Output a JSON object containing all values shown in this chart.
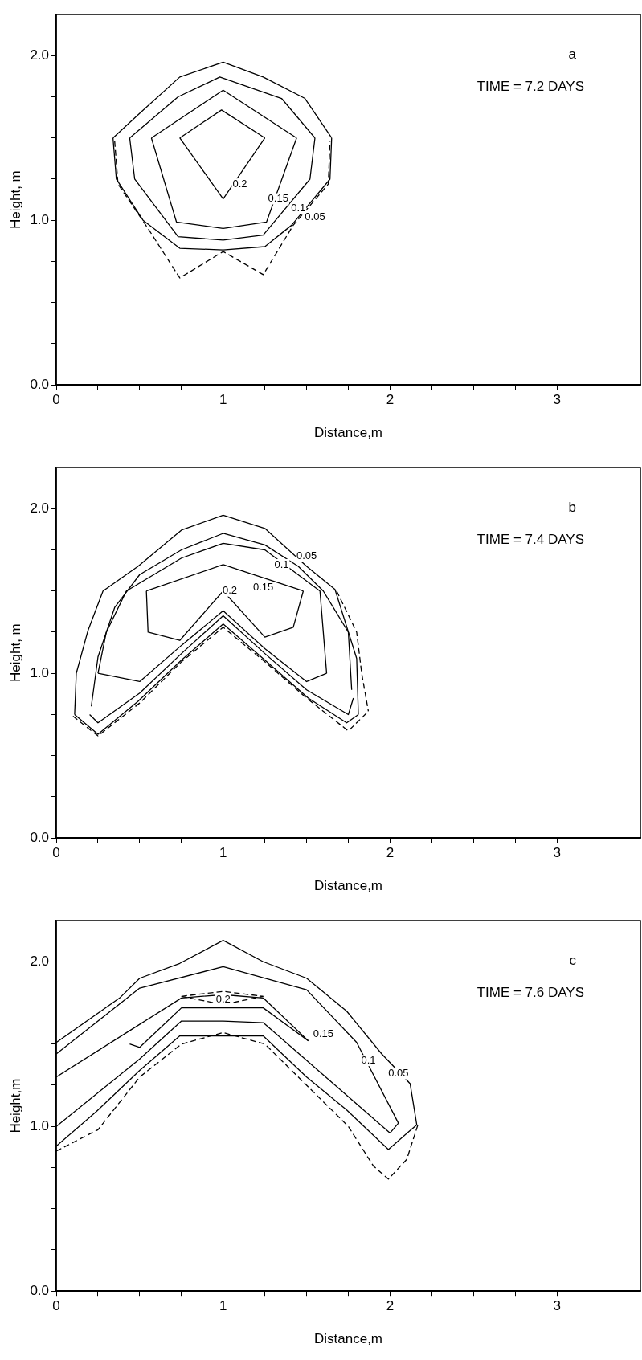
{
  "chart_data": [
    {
      "type": "line",
      "xlabel": "Distance,m",
      "ylabel": "Height, m",
      "xlim": [
        0,
        3.5
      ],
      "ylim": [
        0,
        2.25
      ],
      "xticks": [
        0,
        {
          "value": 0.25,
          "label": null
        },
        {
          "value": 0.5,
          "label": null
        },
        {
          "value": 0.75,
          "label": null
        },
        1,
        {
          "value": 1.25,
          "label": null
        },
        {
          "value": 1.5,
          "label": null
        },
        {
          "value": 1.75,
          "label": null
        },
        2,
        {
          "value": 2.25,
          "label": null
        },
        {
          "value": 2.5,
          "label": null
        },
        {
          "value": 2.75,
          "label": null
        },
        3,
        {
          "value": 3.25,
          "label": null
        }
      ],
      "yticks": [
        {
          "value": 0,
          "label": "0.0"
        },
        {
          "value": 0.25,
          "label": null
        },
        {
          "value": 0.5,
          "label": null
        },
        {
          "value": 0.75,
          "label": null
        },
        {
          "value": 1,
          "label": "1.0"
        },
        {
          "value": 1.25,
          "label": null
        },
        {
          "value": 1.5,
          "label": null
        },
        {
          "value": 1.75,
          "label": null
        },
        {
          "value": 2,
          "label": "2.0"
        }
      ],
      "grid": false,
      "legend": false,
      "marker": "none",
      "series": [
        {
          "color": "#000000",
          "line_style": "solid",
          "x": [
            0.34,
            0.36,
            0.52,
            0.74,
            1.0,
            1.25,
            1.41,
            1.64,
            1.65
          ],
          "values": [
            1.5,
            1.25,
            1.0,
            0.83,
            0.82,
            0.84,
            0.97,
            1.25,
            1.5
          ]
        },
        {
          "color": "#000000",
          "line_style": "solid",
          "x": [
            0.34,
            0.5,
            0.74,
            1.0,
            1.24,
            1.49,
            1.65
          ],
          "values": [
            1.5,
            1.65,
            1.87,
            1.96,
            1.87,
            1.74,
            1.5
          ]
        },
        {
          "color": "#000000",
          "line_style": "solid",
          "x": [
            0.44,
            0.47,
            0.73,
            1.0,
            1.24,
            1.52,
            1.55
          ],
          "values": [
            1.5,
            1.25,
            0.9,
            0.88,
            0.91,
            1.25,
            1.5
          ]
        },
        {
          "color": "#000000",
          "line_style": "solid",
          "x": [
            0.44,
            0.73,
            0.98,
            1.35,
            1.55
          ],
          "values": [
            1.5,
            1.75,
            1.87,
            1.74,
            1.5
          ]
        },
        {
          "color": "#000000",
          "line_style": "solid",
          "x": [
            0.57,
            0.72,
            1.0,
            1.26,
            1.44
          ],
          "values": [
            1.5,
            0.99,
            0.95,
            0.99,
            1.5
          ]
        },
        {
          "color": "#000000",
          "line_style": "solid",
          "x": [
            0.57,
            1.0,
            1.44
          ],
          "values": [
            1.5,
            1.79,
            1.5
          ]
        },
        {
          "color": "#000000",
          "line_style": "solid",
          "x": [
            0.74,
            1.0,
            1.25
          ],
          "values": [
            1.5,
            1.13,
            1.5
          ]
        },
        {
          "color": "#000000",
          "line_style": "solid",
          "x": [
            0.74,
            0.99,
            1.25
          ],
          "values": [
            1.5,
            1.67,
            1.5
          ]
        },
        {
          "color": "#000000",
          "line_style": "dashed",
          "x": [
            0.35,
            0.37,
            0.55,
            0.74,
            1.0,
            1.24,
            1.42,
            1.63,
            1.64
          ],
          "values": [
            1.48,
            1.22,
            0.95,
            0.65,
            0.81,
            0.67,
            0.97,
            1.22,
            1.48
          ]
        }
      ],
      "annotations": [
        "a",
        "TIME = 7.2 DAYS",
        {
          "text": "0.2",
          "x": 1.1,
          "y": 1.22
        },
        {
          "text": "0.15",
          "x": 1.33,
          "y": 1.13
        },
        {
          "text": "0.1",
          "x": 1.45,
          "y": 1.07
        },
        {
          "text": "0.05",
          "x": 1.55,
          "y": 1.02
        }
      ]
    },
    {
      "type": "line",
      "xlabel": "Distance,m",
      "ylabel": "Height, m",
      "xlim": [
        0,
        3.5
      ],
      "ylim": [
        0,
        2.25
      ],
      "xticks": [
        0,
        {
          "value": 0.25,
          "label": null
        },
        {
          "value": 0.5,
          "label": null
        },
        {
          "value": 0.75,
          "label": null
        },
        1,
        {
          "value": 1.25,
          "label": null
        },
        {
          "value": 1.5,
          "label": null
        },
        {
          "value": 1.75,
          "label": null
        },
        2,
        {
          "value": 2.25,
          "label": null
        },
        {
          "value": 2.5,
          "label": null
        },
        {
          "value": 2.75,
          "label": null
        },
        3,
        {
          "value": 3.25,
          "label": null
        }
      ],
      "yticks": [
        {
          "value": 0,
          "label": "0.0"
        },
        {
          "value": 0.25,
          "label": null
        },
        {
          "value": 0.5,
          "label": null
        },
        {
          "value": 0.75,
          "label": null
        },
        {
          "value": 1,
          "label": "1.0"
        },
        {
          "value": 1.25,
          "label": null
        },
        {
          "value": 1.5,
          "label": null
        },
        {
          "value": 1.75,
          "label": null
        },
        {
          "value": 2,
          "label": "2.0"
        }
      ],
      "grid": false,
      "legend": false,
      "marker": "none",
      "series": [
        {
          "color": "#000000",
          "line_style": "solid",
          "x": [
            0.11,
            0.25,
            0.49,
            0.75,
            1.0,
            1.25,
            1.51,
            1.74,
            1.81
          ],
          "values": [
            0.75,
            0.63,
            0.83,
            1.08,
            1.3,
            1.08,
            0.85,
            0.7,
            0.75
          ]
        },
        {
          "color": "#000000",
          "line_style": "solid",
          "x": [
            0.11,
            0.12,
            0.19,
            0.28,
            0.49,
            0.75,
            1.0,
            1.25,
            1.5,
            1.67,
            1.8,
            1.81
          ],
          "values": [
            0.75,
            1.0,
            1.26,
            1.5,
            1.65,
            1.87,
            1.96,
            1.88,
            1.65,
            1.51,
            1.09,
            0.75
          ]
        },
        {
          "color": "#000000",
          "line_style": "solid",
          "x": [
            0.2,
            0.25,
            0.5,
            0.75,
            1.0,
            1.25,
            1.5,
            1.75,
            1.78
          ],
          "values": [
            0.75,
            0.7,
            0.88,
            1.12,
            1.35,
            1.12,
            0.9,
            0.75,
            0.85
          ]
        },
        {
          "color": "#000000",
          "line_style": "solid",
          "x": [
            0.21,
            0.25,
            0.35,
            0.5,
            0.75,
            1.0,
            1.25,
            1.45,
            1.6,
            1.75,
            1.77
          ],
          "values": [
            0.8,
            1.1,
            1.4,
            1.6,
            1.75,
            1.85,
            1.78,
            1.65,
            1.5,
            1.25,
            0.9
          ]
        },
        {
          "color": "#000000",
          "line_style": "solid",
          "x": [
            0.25,
            0.5,
            0.75,
            1.0,
            1.25,
            1.5,
            1.62
          ],
          "values": [
            1.0,
            0.95,
            1.17,
            1.38,
            1.15,
            0.95,
            1.0
          ]
        },
        {
          "color": "#000000",
          "line_style": "solid",
          "x": [
            0.25,
            0.3,
            0.42,
            0.75,
            1.0,
            1.25,
            1.58,
            1.62
          ],
          "values": [
            1.0,
            1.25,
            1.5,
            1.7,
            1.79,
            1.75,
            1.5,
            1.0
          ]
        },
        {
          "color": "#000000",
          "line_style": "solid",
          "x": [
            0.54,
            0.55,
            0.74,
            1.0,
            1.25,
            1.42,
            1.48
          ],
          "values": [
            1.5,
            1.25,
            1.2,
            1.5,
            1.22,
            1.28,
            1.5
          ]
        },
        {
          "color": "#000000",
          "line_style": "solid",
          "x": [
            0.54,
            1.0,
            1.48
          ],
          "values": [
            1.5,
            1.66,
            1.5
          ]
        },
        {
          "color": "#000000",
          "line_style": "dashed",
          "x": [
            0.1,
            0.25,
            0.5,
            0.75,
            1.0,
            1.25,
            1.5,
            1.75,
            1.87
          ],
          "values": [
            0.74,
            0.62,
            0.82,
            1.07,
            1.28,
            1.07,
            0.85,
            0.65,
            0.77
          ]
        },
        {
          "color": "#000000",
          "line_style": "dashed",
          "x": [
            1.68,
            1.8,
            1.83,
            1.87
          ],
          "values": [
            1.5,
            1.25,
            1.0,
            0.77
          ]
        }
      ],
      "annotations": [
        "b",
        "TIME = 7.4 DAYS",
        {
          "text": "0.05",
          "x": 1.5,
          "y": 1.71
        },
        {
          "text": "0.1",
          "x": 1.35,
          "y": 1.66
        },
        {
          "text": "0.15",
          "x": 1.24,
          "y": 1.52
        },
        {
          "text": "0.2",
          "x": 1.04,
          "y": 1.5
        }
      ]
    },
    {
      "type": "line",
      "xlabel": "Distance,m",
      "ylabel": "Height,m",
      "xlim": [
        0,
        3.5
      ],
      "ylim": [
        0,
        2.25
      ],
      "xticks": [
        0,
        {
          "value": 0.25,
          "label": null
        },
        {
          "value": 0.5,
          "label": null
        },
        {
          "value": 0.75,
          "label": null
        },
        1,
        {
          "value": 1.25,
          "label": null
        },
        {
          "value": 1.5,
          "label": null
        },
        {
          "value": 1.75,
          "label": null
        },
        2,
        {
          "value": 2.25,
          "label": null
        },
        {
          "value": 2.5,
          "label": null
        },
        {
          "value": 2.75,
          "label": null
        },
        3,
        {
          "value": 3.25,
          "label": null
        }
      ],
      "yticks": [
        {
          "value": 0,
          "label": "0.0"
        },
        {
          "value": 0.25,
          "label": null
        },
        {
          "value": 0.5,
          "label": null
        },
        {
          "value": 0.75,
          "label": null
        },
        {
          "value": 1,
          "label": "1.0"
        },
        {
          "value": 1.25,
          "label": null
        },
        {
          "value": 1.5,
          "label": null
        },
        {
          "value": 1.75,
          "label": null
        },
        {
          "value": 2,
          "label": "2.0"
        }
      ],
      "grid": false,
      "legend": false,
      "marker": "none",
      "series": [
        {
          "color": "#000000",
          "line_style": "solid",
          "x": [
            0,
            0.38,
            0.5,
            0.74,
            1.0,
            1.24,
            1.5,
            1.74,
            1.95,
            2.12,
            2.16
          ],
          "values": [
            1.51,
            1.78,
            1.9,
            1.99,
            2.13,
            2.0,
            1.9,
            1.7,
            1.44,
            1.26,
            1.01
          ]
        },
        {
          "color": "#000000",
          "line_style": "solid",
          "x": [
            0,
            0.24,
            0.5,
            0.74,
            1.0,
            1.24,
            1.5,
            1.74,
            1.99,
            2.16
          ],
          "values": [
            0.88,
            1.09,
            1.34,
            1.55,
            1.55,
            1.55,
            1.3,
            1.1,
            0.86,
            1.01
          ]
        },
        {
          "color": "#000000",
          "line_style": "solid",
          "x": [
            0,
            0.5,
            1.0,
            1.5,
            1.8,
            2.05
          ],
          "values": [
            1.44,
            1.84,
            1.97,
            1.83,
            1.51,
            1.02
          ]
        },
        {
          "color": "#000000",
          "line_style": "solid",
          "x": [
            0,
            0.5,
            0.75,
            1.0,
            1.24,
            1.75,
            2.0,
            2.05
          ],
          "values": [
            1.0,
            1.41,
            1.64,
            1.64,
            1.63,
            1.18,
            0.96,
            1.02
          ]
        },
        {
          "color": "#000000",
          "line_style": "solid",
          "x": [
            0.44,
            0.5,
            0.75,
            1.0,
            1.24,
            1.51
          ],
          "values": [
            1.5,
            1.48,
            1.72,
            1.72,
            1.72,
            1.52
          ]
        },
        {
          "color": "#000000",
          "line_style": "solid",
          "x": [
            0,
            0.5,
            0.75,
            1.0,
            1.24,
            1.51
          ],
          "values": [
            1.3,
            1.62,
            1.78,
            1.8,
            1.78,
            1.52
          ]
        },
        {
          "color": "#000000",
          "line_style": "dashed",
          "x": [
            0.75,
            1.0,
            1.24
          ],
          "values": [
            1.79,
            1.74,
            1.79
          ]
        },
        {
          "color": "#000000",
          "line_style": "dashed",
          "x": [
            0.75,
            1.0,
            1.24
          ],
          "values": [
            1.79,
            1.82,
            1.79
          ]
        },
        {
          "color": "#000000",
          "line_style": "dashed",
          "x": [
            0,
            0.25,
            0.5,
            0.75,
            1.0,
            1.25,
            1.5,
            1.75,
            1.9,
            1.99,
            2.1,
            2.17
          ],
          "values": [
            0.85,
            0.98,
            1.3,
            1.5,
            1.57,
            1.5,
            1.25,
            1.0,
            0.76,
            0.68,
            0.8,
            1.02
          ]
        }
      ],
      "annotations": [
        "c",
        "TIME = 7.6 DAYS",
        {
          "text": "0.2",
          "x": 1.0,
          "y": 1.77
        },
        {
          "text": "0.15",
          "x": 1.6,
          "y": 1.56
        },
        {
          "text": "0.1",
          "x": 1.87,
          "y": 1.4
        },
        {
          "text": "0.05",
          "x": 2.05,
          "y": 1.32
        }
      ]
    }
  ]
}
